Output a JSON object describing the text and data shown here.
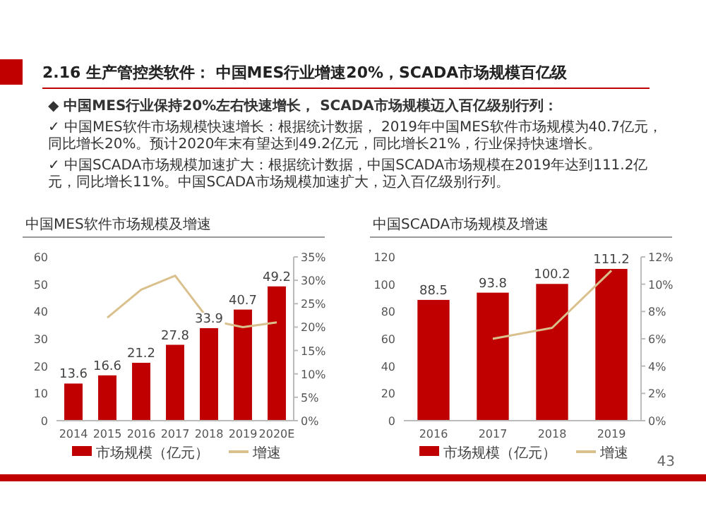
{
  "chart_data": [
    {
      "type": "bar",
      "title": "中国MES软件市场规模及增速",
      "categories": [
        "2014",
        "2015",
        "2016",
        "2017",
        "2018",
        "2019",
        "2020E"
      ],
      "series": [
        {
          "name": "市场规模（亿元）",
          "color": "#c00000",
          "values": [
            13.6,
            16.6,
            21.2,
            27.8,
            33.9,
            40.7,
            49.2
          ],
          "value_labels": [
            "13.6",
            "16.6",
            "21.2",
            "27.8",
            "33.9",
            "40.7",
            "49.2"
          ]
        },
        {
          "name": "增速",
          "type": "line",
          "axis": "y2",
          "color": "#d9c08c",
          "values": [
            null,
            22,
            28,
            31,
            21.5,
            20,
            21
          ]
        }
      ],
      "ylim": [
        0,
        60
      ],
      "yticks": [
        0,
        10,
        20,
        30,
        40,
        50,
        60
      ],
      "y2lim": [
        0,
        35
      ],
      "y2ticks": [
        {
          "value": 0,
          "label": "0%"
        },
        {
          "value": 5,
          "label": "5%"
        },
        {
          "value": 10,
          "label": "10%"
        },
        {
          "value": 15,
          "label": "15%"
        },
        {
          "value": 20,
          "label": "20%"
        },
        {
          "value": 25,
          "label": "25%"
        },
        {
          "value": 30,
          "label": "30%"
        },
        {
          "value": 35,
          "label": "35%"
        }
      ],
      "legend": "bottom",
      "grid": false,
      "annotations": [
        "2.16 生产管控类软件： 中国MES行业增速20%，SCADA市场规模百亿级",
        "◆ 中国MES行业保持20%左右快速增长， SCADA市场规模迈入百亿级别行列：",
        "✓ 中国MES软件市场规模快速增长：根据统计数据， 2019年中国MES软件市场规模为40.7亿元，同比增长20%。预计2020年末有望达到49.2亿元，同比增长21%，行业保持快速增长。",
        "✓ 中国SCADA市场规模加速扩大：根据统计数据，中国SCADA市场规模在2019年达到111.2亿元，同比增长11%。中国SCADA市场规模加速扩大，迈入百亿级别行列。",
        "43"
      ]
    },
    {
      "type": "bar",
      "title": "中国SCADA市场规模及增速",
      "categories": [
        "2016",
        "2017",
        "2018",
        "2019"
      ],
      "series": [
        {
          "name": "市场规模（亿元）",
          "color": "#c00000",
          "values": [
            88.5,
            93.8,
            100.2,
            111.2
          ],
          "value_labels": [
            "88.5",
            "93.8",
            "100.2",
            "111.2"
          ]
        },
        {
          "name": "增速",
          "type": "line",
          "axis": "y2",
          "color": "#d9c08c",
          "values": [
            null,
            6,
            6.8,
            11
          ]
        }
      ],
      "ylim": [
        0,
        120
      ],
      "yticks": [
        0,
        20,
        40,
        60,
        80,
        100,
        120
      ],
      "y2lim": [
        0,
        12
      ],
      "y2ticks": [
        {
          "value": 0,
          "label": "0%"
        },
        {
          "value": 2,
          "label": "2%"
        },
        {
          "value": 4,
          "label": "4%"
        },
        {
          "value": 6,
          "label": "6%"
        },
        {
          "value": 8,
          "label": "8%"
        },
        {
          "value": 10,
          "label": "10%"
        },
        {
          "value": 12,
          "label": "12%"
        }
      ],
      "legend": "bottom",
      "grid": false
    }
  ]
}
